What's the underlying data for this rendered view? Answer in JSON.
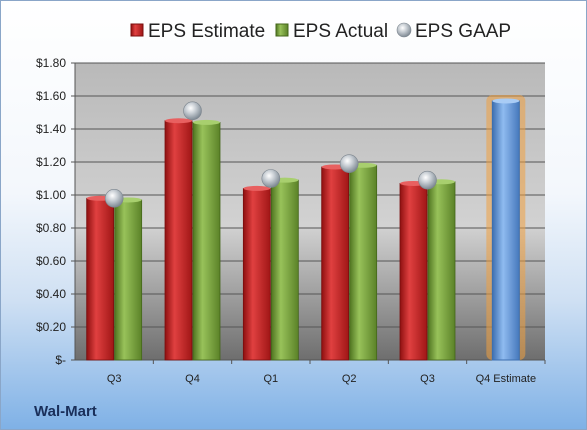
{
  "company": "Wal-Mart",
  "colors": {
    "estimate": "#c81e1e",
    "actual": "#7aa33a",
    "gaap": "#a9b4be",
    "forecast": "#5b93d6",
    "forecast_glow": "#f0a040"
  },
  "chart_data": {
    "type": "bar",
    "categories": [
      "Q3",
      "Q4",
      "Q1",
      "Q2",
      "Q3",
      "Q4 Estimate"
    ],
    "series": [
      {
        "name": "EPS Estimate",
        "values": [
          0.98,
          1.45,
          1.04,
          1.17,
          1.07,
          null
        ]
      },
      {
        "name": "EPS Actual",
        "values": [
          0.97,
          1.44,
          1.09,
          1.18,
          1.08,
          1.57
        ]
      },
      {
        "name": "EPS GAAP",
        "values": [
          0.98,
          1.51,
          1.1,
          1.19,
          1.09,
          null
        ]
      }
    ],
    "highlighted_category": "Q4 Estimate",
    "ylim": [
      0,
      1.8
    ],
    "yticks": [
      "$-",
      "$0.20",
      "$0.40",
      "$0.60",
      "$0.80",
      "$1.00",
      "$1.20",
      "$1.40",
      "$1.60",
      "$1.80"
    ],
    "legend": [
      "EPS Estimate",
      "EPS Actual",
      "EPS GAAP"
    ],
    "legend_position": "top",
    "grid": true
  }
}
